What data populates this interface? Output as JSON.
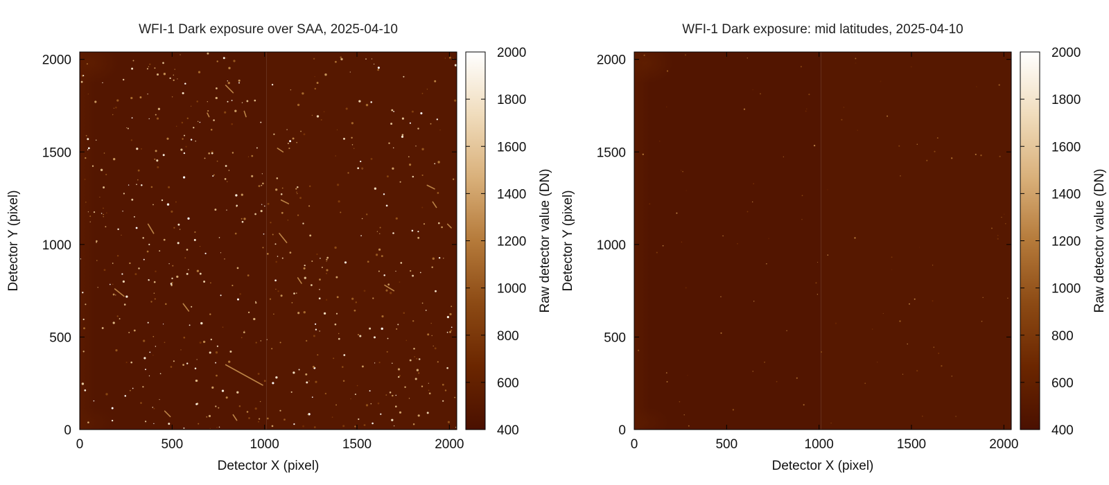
{
  "chart_data": [
    {
      "type": "heatmap",
      "title": "WFI-1 Dark exposure over SAA, 2025-04-10",
      "xlabel": "Detector X (pixel)",
      "ylabel": "Detector Y (pixel)",
      "colorbar_label": "Raw detector value (DN)",
      "xlim": [
        0,
        2040
      ],
      "ylim": [
        0,
        2040
      ],
      "x_ticks": [
        0,
        500,
        1000,
        1500,
        2000
      ],
      "y_ticks": [
        0,
        500,
        1000,
        1500,
        2000
      ],
      "color_range": [
        400,
        2000
      ],
      "colorbar_ticks": [
        400,
        600,
        800,
        1000,
        1200,
        1400,
        1600,
        1800,
        2000
      ],
      "colormap": [
        "#4a1000",
        "#6b2600",
        "#8c4a14",
        "#b57a3a",
        "#d9b07a",
        "#f0dcbc",
        "#ffffff"
      ],
      "regions": [
        {
          "x_range": [
            0,
            1010
          ],
          "y_range": [
            0,
            2040
          ],
          "level": 470
        },
        {
          "x_range": [
            1010,
            2040
          ],
          "y_range": [
            0,
            2040
          ],
          "level": 500
        }
      ],
      "hotspot": {
        "x": 60,
        "y": 1980,
        "level": 560
      },
      "cosmic_ray_density": "high",
      "cosmic_ray_tracks": [
        {
          "x1": 790,
          "y1": 1860,
          "x2": 830,
          "y2": 1820
        },
        {
          "x1": 690,
          "y1": 1710,
          "x2": 700,
          "y2": 1690
        },
        {
          "x1": 890,
          "y1": 1720,
          "x2": 900,
          "y2": 1690
        },
        {
          "x1": 370,
          "y1": 1110,
          "x2": 400,
          "y2": 1060
        },
        {
          "x1": 190,
          "y1": 760,
          "x2": 240,
          "y2": 720
        },
        {
          "x1": 560,
          "y1": 680,
          "x2": 590,
          "y2": 640
        },
        {
          "x1": 790,
          "y1": 350,
          "x2": 990,
          "y2": 240
        },
        {
          "x1": 460,
          "y1": 100,
          "x2": 490,
          "y2": 70
        },
        {
          "x1": 830,
          "y1": 80,
          "x2": 850,
          "y2": 50
        },
        {
          "x1": 1070,
          "y1": 1520,
          "x2": 1100,
          "y2": 1500
        },
        {
          "x1": 1090,
          "y1": 1240,
          "x2": 1130,
          "y2": 1220
        },
        {
          "x1": 1080,
          "y1": 1060,
          "x2": 1120,
          "y2": 1010
        },
        {
          "x1": 1180,
          "y1": 820,
          "x2": 1200,
          "y2": 790
        },
        {
          "x1": 1650,
          "y1": 780,
          "x2": 1700,
          "y2": 750
        },
        {
          "x1": 1880,
          "y1": 1320,
          "x2": 1920,
          "y2": 1300
        },
        {
          "x1": 1910,
          "y1": 1230,
          "x2": 1930,
          "y2": 1200
        },
        {
          "x1": 1990,
          "y1": 1110,
          "x2": 2010,
          "y2": 1090
        }
      ]
    },
    {
      "type": "heatmap",
      "title": "WFI-1 Dark exposure: mid latitudes, 2025-04-10",
      "xlabel": "Detector X (pixel)",
      "ylabel": "Detector Y (pixel)",
      "colorbar_label": "Raw detector value (DN)",
      "xlim": [
        0,
        2040
      ],
      "ylim": [
        0,
        2040
      ],
      "x_ticks": [
        0,
        500,
        1000,
        1500,
        2000
      ],
      "y_ticks": [
        0,
        500,
        1000,
        1500,
        2000
      ],
      "color_range": [
        400,
        2000
      ],
      "colorbar_ticks": [
        400,
        600,
        800,
        1000,
        1200,
        1400,
        1600,
        1800,
        2000
      ],
      "colormap": [
        "#4a1000",
        "#6b2600",
        "#8c4a14",
        "#b57a3a",
        "#d9b07a",
        "#f0dcbc",
        "#ffffff"
      ],
      "regions": [
        {
          "x_range": [
            0,
            1010
          ],
          "y_range": [
            0,
            2040
          ],
          "level": 465
        },
        {
          "x_range": [
            1010,
            2040
          ],
          "y_range": [
            0,
            2040
          ],
          "level": 495
        }
      ],
      "hotspot": {
        "x": 60,
        "y": 1980,
        "level": 570
      },
      "cosmic_ray_density": "low",
      "cosmic_ray_tracks": []
    }
  ]
}
